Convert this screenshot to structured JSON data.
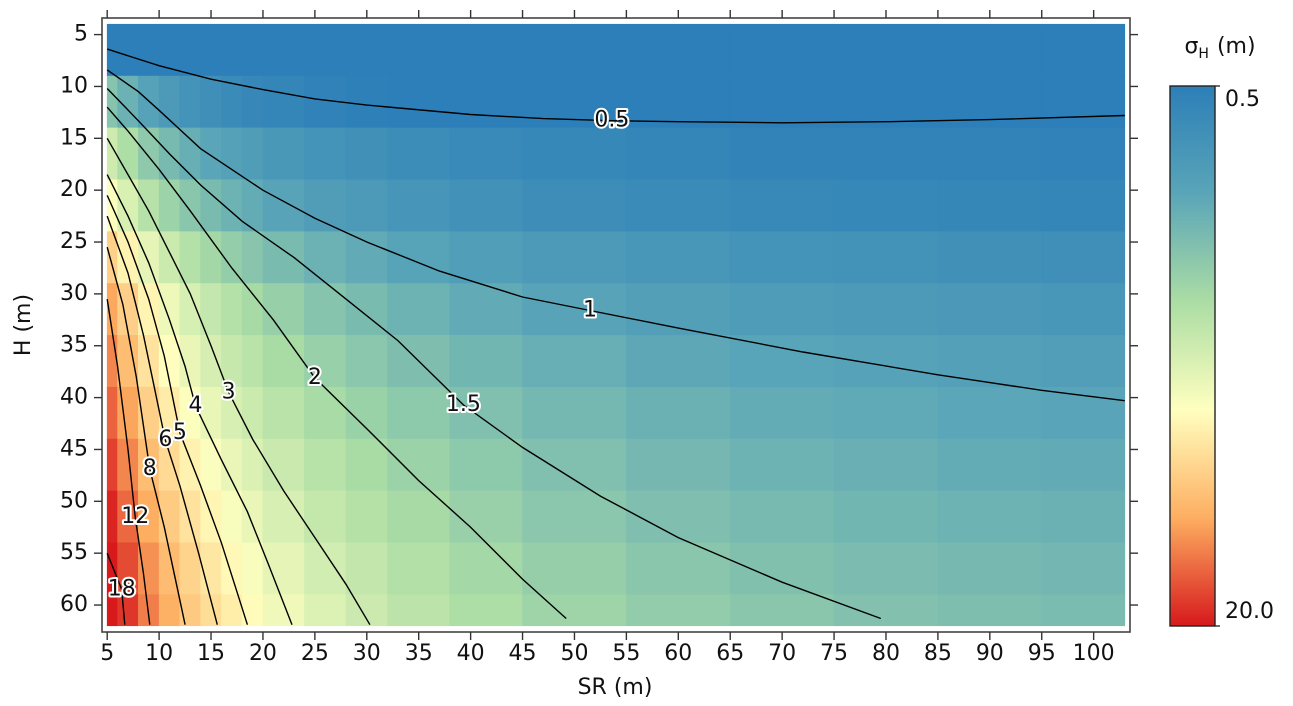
{
  "chart_data": {
    "type": "heatmap",
    "x_label": "SR (m)",
    "y_label": "H (m)",
    "xlim": [
      4.5,
      103.5
    ],
    "ylim": [
      3.4,
      62.6
    ],
    "y_inverted": true,
    "xticks": [
      5,
      10,
      15,
      20,
      25,
      30,
      35,
      40,
      45,
      50,
      55,
      60,
      65,
      70,
      75,
      80,
      85,
      90,
      95,
      100
    ],
    "yticks": [
      5,
      10,
      15,
      20,
      25,
      30,
      35,
      40,
      45,
      50,
      55,
      60
    ],
    "x_edges": [
      5,
      6,
      8,
      10,
      12,
      14,
      16,
      18,
      20,
      24,
      28,
      32,
      38,
      45,
      55,
      65,
      75,
      85,
      95,
      103
    ],
    "y_edges": [
      4,
      9,
      14,
      19,
      24,
      29,
      34,
      39,
      44,
      49,
      54,
      59,
      62
    ],
    "z": [
      [
        0.48,
        0.45,
        0.43,
        0.42,
        0.41,
        0.4,
        0.4,
        0.4,
        0.39,
        0.39,
        0.39,
        0.39,
        0.38,
        0.38,
        0.38,
        0.38,
        0.38,
        0.38,
        0.38
      ],
      [
        1.58,
        1.23,
        0.98,
        0.83,
        0.74,
        0.68,
        0.63,
        0.6,
        0.57,
        0.53,
        0.51,
        0.49,
        0.48,
        0.46,
        0.45,
        0.45,
        0.44,
        0.44,
        0.44
      ],
      [
        2.98,
        2.23,
        1.68,
        1.38,
        1.18,
        1.05,
        0.96,
        0.89,
        0.81,
        0.74,
        0.69,
        0.65,
        0.62,
        0.59,
        0.57,
        0.55,
        0.54,
        0.54,
        0.53
      ],
      [
        4.47,
        3.27,
        2.41,
        1.92,
        1.61,
        1.4,
        1.25,
        1.14,
        1.01,
        0.9,
        0.83,
        0.77,
        0.71,
        0.66,
        0.63,
        0.61,
        0.59,
        0.58,
        0.57
      ],
      [
        7.03,
        5.08,
        3.67,
        2.87,
        2.37,
        2.03,
        1.78,
        1.6,
        1.4,
        1.23,
        1.11,
        1.0,
        0.91,
        0.83,
        0.78,
        0.74,
        0.72,
        0.7,
        0.68
      ],
      [
        9.83,
        7.05,
        5.05,
        3.91,
        3.2,
        2.71,
        2.36,
        2.1,
        1.82,
        1.57,
        1.4,
        1.25,
        1.12,
        1.01,
        0.93,
        0.88,
        0.85,
        0.82,
        0.8
      ],
      [
        11.63,
        8.34,
        5.96,
        4.62,
        3.77,
        3.19,
        2.78,
        2.47,
        2.14,
        1.84,
        1.63,
        1.46,
        1.3,
        1.18,
        1.08,
        1.02,
        0.98,
        0.94,
        0.92
      ],
      [
        13.88,
        9.93,
        7.08,
        5.46,
        4.45,
        3.75,
        3.26,
        2.89,
        2.49,
        2.13,
        1.88,
        1.67,
        1.49,
        1.34,
        1.22,
        1.15,
        1.1,
        1.06,
        1.03
      ],
      [
        16.42,
        11.72,
        8.32,
        6.4,
        5.19,
        4.36,
        3.77,
        3.33,
        2.86,
        2.43,
        2.14,
        1.89,
        1.67,
        1.49,
        1.35,
        1.26,
        1.2,
        1.15,
        1.12
      ],
      [
        18.96,
        13.51,
        9.56,
        7.34,
        5.93,
        4.97,
        4.29,
        3.78,
        3.23,
        2.73,
        2.39,
        2.1,
        1.85,
        1.64,
        1.48,
        1.38,
        1.3,
        1.25,
        1.22
      ],
      [
        21.97,
        15.62,
        11.03,
        8.44,
        6.8,
        5.69,
        4.89,
        4.3,
        3.66,
        3.08,
        2.68,
        2.34,
        2.05,
        1.8,
        1.62,
        1.5,
        1.42,
        1.36,
        1.32
      ],
      [
        24.35,
        17.3,
        12.2,
        9.32,
        7.5,
        6.26,
        5.38,
        4.72,
        4.01,
        3.36,
        2.93,
        2.55,
        2.22,
        1.95,
        1.75,
        1.61,
        1.52,
        1.45,
        1.41
      ]
    ],
    "zlim": [
      0.5,
      20
    ],
    "z_log": true,
    "colorscale": [
      "#2c7fb8",
      "#5aa5b8",
      "#abdda4",
      "#ffffbf",
      "#fdae61",
      "#d7191c"
    ],
    "colorbar": {
      "title": "σ",
      "title_subscript": "H",
      "title_unit": "(m)",
      "ticks": [
        0.5,
        {
          "value": 20,
          "label": "20.0"
        }
      ]
    },
    "contour_color": "#000000",
    "contours": [
      {
        "level": 0.5,
        "x": [
          5,
          10,
          15,
          20,
          25,
          30,
          40,
          47,
          53.6,
          60,
          70,
          80,
          90,
          103
        ],
        "y": [
          6.4,
          8.0,
          9.3,
          10.3,
          11.2,
          11.8,
          12.7,
          13.1,
          13.3,
          13.4,
          13.5,
          13.4,
          13.2,
          12.8
        ]
      },
      {
        "level": 1,
        "x": [
          5,
          8,
          10,
          14,
          20,
          25,
          30,
          37,
          45,
          51.5,
          60,
          72,
          85,
          95,
          103
        ],
        "y": [
          8.4,
          10.5,
          12.3,
          16,
          20,
          22.7,
          25,
          27.8,
          30.3,
          31.6,
          33.3,
          35.6,
          37.8,
          39.3,
          40.3
        ]
      },
      {
        "level": 1.5,
        "x": [
          5,
          8,
          11,
          14,
          18,
          23,
          28,
          33,
          39.3,
          45,
          52.5,
          60,
          70,
          79.5
        ],
        "y": [
          10.2,
          13.3,
          16.5,
          19.5,
          23,
          26.5,
          30.5,
          34.5,
          40.7,
          44.8,
          49.5,
          53.5,
          57.8,
          61.3
        ]
      },
      {
        "level": 2,
        "x": [
          5,
          7,
          10,
          13,
          17,
          21,
          25,
          30,
          35,
          40,
          45,
          49.2
        ],
        "y": [
          12,
          14.3,
          18,
          22,
          27.5,
          32.5,
          38.1,
          43,
          48,
          52.5,
          57.5,
          61.3
        ]
      },
      {
        "level": 3,
        "x": [
          5,
          7,
          9,
          11,
          13,
          15,
          16.7,
          19,
          22,
          25,
          28,
          30.3
        ],
        "y": [
          15,
          18.5,
          22,
          26,
          30,
          35,
          39.5,
          44,
          49,
          53.5,
          58,
          61.9
        ]
      },
      {
        "level": 4,
        "x": [
          5,
          7,
          9,
          11,
          12.5,
          13.5,
          16,
          18.5,
          20.5,
          22.8
        ],
        "y": [
          18.5,
          22.5,
          27,
          32.5,
          37,
          40.8,
          46,
          51,
          56,
          61.9
        ]
      },
      {
        "level": 5,
        "x": [
          5,
          7,
          9,
          10.5,
          12,
          14,
          16,
          18.5
        ],
        "y": [
          20.5,
          25,
          30.5,
          36,
          43.4,
          48.5,
          54,
          61.9
        ]
      },
      {
        "level": 6,
        "x": [
          5,
          7,
          8.5,
          10.6,
          12,
          13.8,
          15.6
        ],
        "y": [
          22.5,
          28,
          34,
          44.1,
          48.5,
          55,
          61.9
        ]
      },
      {
        "level": 8,
        "x": [
          5,
          6.5,
          7.8,
          9.1,
          10.5,
          12.5
        ],
        "y": [
          25.5,
          31,
          38,
          46.9,
          52.5,
          61.9
        ]
      },
      {
        "level": 12,
        "x": [
          5,
          6,
          7,
          7.7,
          8.5,
          9.1
        ],
        "y": [
          30.5,
          37,
          45,
          51.5,
          57,
          61.9
        ]
      },
      {
        "level": 18,
        "x": [
          5,
          5.8,
          6.4,
          6.7
        ],
        "y": [
          55,
          57,
          58.5,
          61.9
        ]
      }
    ]
  }
}
